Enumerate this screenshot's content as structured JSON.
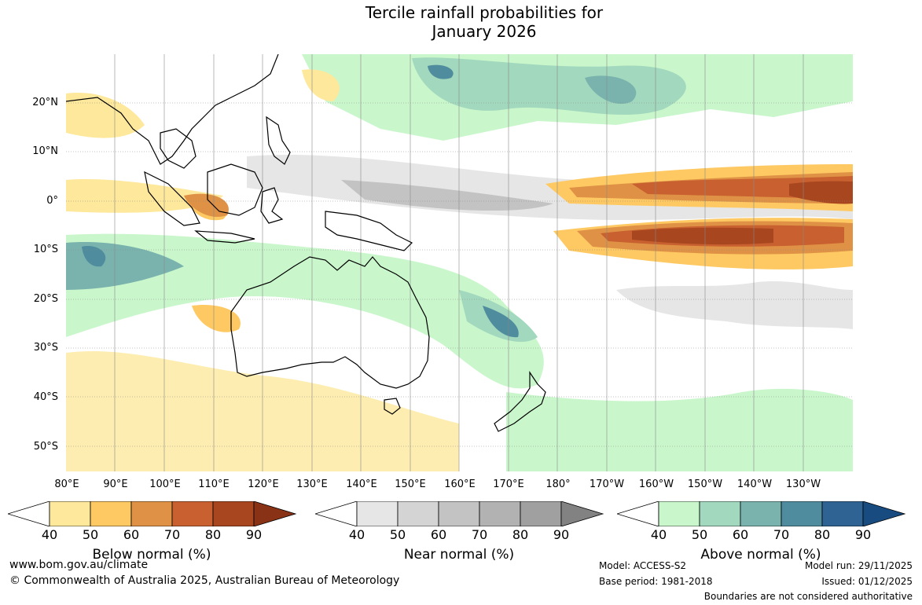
{
  "title": {
    "line1": "Tercile rainfall probabilities for",
    "line2": "January 2026"
  },
  "map": {
    "lat_labels": [
      "20°N",
      "10°N",
      "0°",
      "10°S",
      "20°S",
      "30°S",
      "40°S",
      "50°S"
    ],
    "lon_labels": [
      "80°E",
      "90°E",
      "100°E",
      "110°E",
      "120°E",
      "130°E",
      "140°E",
      "150°E",
      "160°E",
      "170°E",
      "180°",
      "170°W",
      "160°W",
      "150°W",
      "140°W",
      "130°W"
    ]
  },
  "legend": {
    "below": {
      "title": "Below normal (%)",
      "ticks": [
        "40",
        "50",
        "60",
        "70",
        "80",
        "90"
      ],
      "colors": [
        "#ffffff",
        "#fee89c",
        "#fec962",
        "#df9245",
        "#c8602f",
        "#a8461f",
        "#8a3216"
      ]
    },
    "near": {
      "title": "Near normal (%)",
      "ticks": [
        "40",
        "50",
        "60",
        "70",
        "80",
        "90"
      ],
      "colors": [
        "#ffffff",
        "#e6e6e6",
        "#d4d4d4",
        "#c3c3c3",
        "#b2b2b2",
        "#a0a0a0",
        "#828282"
      ]
    },
    "above": {
      "title": "Above normal (%)",
      "ticks": [
        "40",
        "50",
        "60",
        "70",
        "80",
        "90"
      ],
      "colors": [
        "#ffffff",
        "#c9f7cb",
        "#a2d8bd",
        "#7ab3ae",
        "#4f8c9e",
        "#2e6393",
        "#184b80"
      ]
    }
  },
  "footer": {
    "website": "www.bom.gov.au/climate",
    "copyright": "© Commonwealth of Australia 2025, Australian Bureau of Meteorology",
    "model": "Model: ACCESS-S2",
    "base_period": "Base period: 1981-2018",
    "model_run": "Model run: 29/11/2025",
    "issued": "Issued: 01/12/2025",
    "boundaries": "Boundaries are not considered authoritative"
  }
}
